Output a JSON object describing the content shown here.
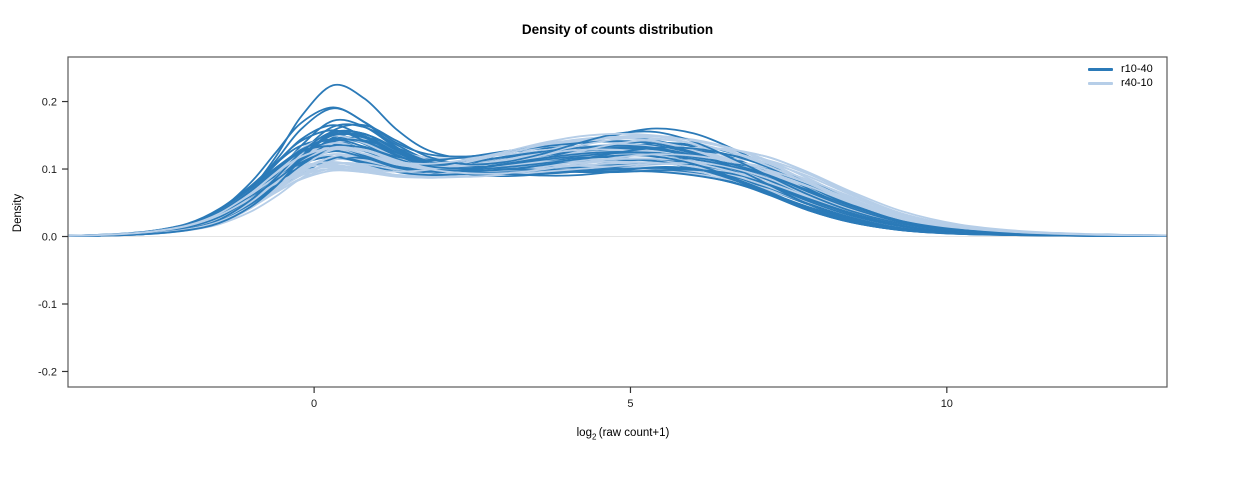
{
  "chart_data": {
    "type": "line",
    "subtype": "density-curves",
    "title": "Density of counts distribution",
    "xlabel": "log2 (raw count+1)",
    "xlabel_parts": {
      "base": "log",
      "sub": "2",
      "rest": " (raw count+1)"
    },
    "ylabel": "Density",
    "x_ticks": {
      "values": [
        0,
        5,
        10
      ],
      "labels": [
        "0",
        "5",
        "10"
      ]
    },
    "y_ticks": {
      "values": [
        0.2,
        0.1,
        0.0,
        -0.1,
        -0.2
      ],
      "labels": [
        "0.2",
        "0.1",
        "0.0",
        "-0.1",
        "-0.2"
      ]
    },
    "xlim": [
      -3.89,
      13.48
    ],
    "ylim": [
      -0.223,
      0.266
    ],
    "grid": false,
    "zero_line": {
      "show": true,
      "color": "#e4e4e4"
    },
    "axis_color": "#595959",
    "tick_color": "#333333",
    "text_color": "#1a1a1a",
    "legend": {
      "position": "topright",
      "entries": [
        {
          "label": "r10-40",
          "color": "#2b7ab8"
        },
        {
          "label": "r40-10",
          "color": "#b6cee8"
        }
      ]
    },
    "series": [
      {
        "name": "r10-40",
        "color": "#2b7ab8",
        "n_curves": 30,
        "seed": 11,
        "base_x": [
          -3.89,
          -3.2,
          -2.6,
          -2.0,
          -1.5,
          -1.0,
          -0.6,
          -0.2,
          0.3,
          0.8,
          1.3,
          1.8,
          2.4,
          3.0,
          3.6,
          4.2,
          4.8,
          5.4,
          6.0,
          6.6,
          7.2,
          7.8,
          8.5,
          9.3,
          10.2,
          11.2,
          12.3,
          13.48
        ],
        "base_y": [
          0.0008,
          0.002,
          0.005,
          0.012,
          0.026,
          0.055,
          0.085,
          0.118,
          0.142,
          0.132,
          0.112,
          0.101,
          0.101,
          0.107,
          0.114,
          0.121,
          0.127,
          0.128,
          0.12,
          0.105,
          0.084,
          0.058,
          0.034,
          0.016,
          0.007,
          0.0035,
          0.0018,
          0.001
        ],
        "peak_outliers": [
          1.64,
          1.42,
          1.34
        ],
        "variation": {
          "peak": [
            0.85,
            1.22
          ],
          "mid": [
            0.78,
            1.2
          ],
          "tail": [
            0.55,
            1.5
          ],
          "shift": 0.5,
          "wiggle": 0.09
        }
      },
      {
        "name": "r40-10",
        "color": "#b6cee8",
        "n_curves": 30,
        "seed": 77,
        "base_x": [
          -3.89,
          -3.2,
          -2.6,
          -2.0,
          -1.5,
          -1.0,
          -0.6,
          -0.2,
          0.3,
          0.8,
          1.3,
          1.8,
          2.4,
          3.0,
          3.6,
          4.2,
          4.8,
          5.4,
          6.0,
          6.6,
          7.2,
          7.8,
          8.5,
          9.3,
          10.2,
          11.2,
          12.3,
          13.48
        ],
        "base_y": [
          0.0008,
          0.002,
          0.005,
          0.012,
          0.025,
          0.05,
          0.078,
          0.105,
          0.124,
          0.119,
          0.106,
          0.1,
          0.102,
          0.108,
          0.116,
          0.123,
          0.127,
          0.127,
          0.121,
          0.11,
          0.093,
          0.07,
          0.044,
          0.022,
          0.01,
          0.0045,
          0.002,
          0.001
        ],
        "peak_outliers": [],
        "variation": {
          "peak": [
            0.78,
            1.22
          ],
          "mid": [
            0.8,
            1.18
          ],
          "tail": [
            0.6,
            1.55
          ],
          "shift": 0.5,
          "wiggle": 0.08
        }
      }
    ],
    "plot_style": {
      "line_width": 1.8
    }
  }
}
